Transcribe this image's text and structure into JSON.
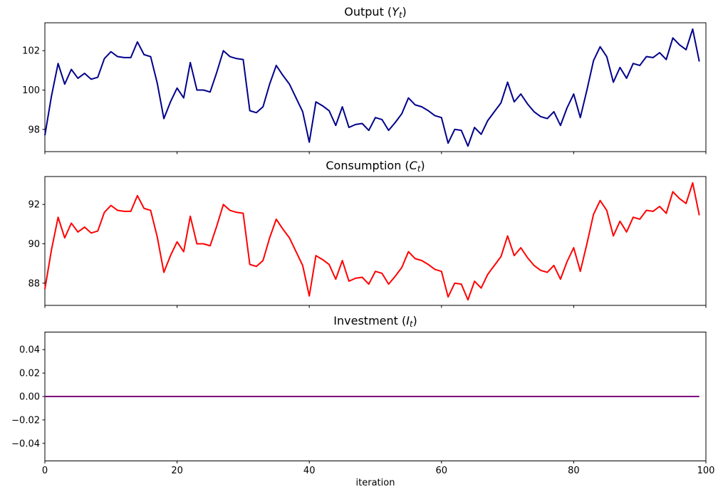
{
  "figure": {
    "background": "#ffffff",
    "text_color": "#000000",
    "axis_color": "#000000"
  },
  "chart_data": [
    {
      "id": "output",
      "type": "line",
      "title": {
        "prefix": "Output (",
        "var": "Y",
        "sub": "t",
        "suffix": ")"
      },
      "line_color": "#00008B",
      "x_start": 0,
      "x_step": 1,
      "xlim": [
        0,
        100
      ],
      "xticks": [
        0,
        20,
        40,
        60,
        80,
        100
      ],
      "xtick_labels": [
        "0",
        "20",
        "40",
        "60",
        "80",
        "100"
      ],
      "show_xtick_labels": false,
      "ylim": [
        96.87,
        103.42
      ],
      "yticks": [
        98,
        100,
        102
      ],
      "ytick_labels": [
        "98",
        "100",
        "102"
      ],
      "values": [
        97.7,
        99.7,
        101.35,
        100.3,
        101.05,
        100.6,
        100.85,
        100.55,
        100.65,
        101.6,
        101.95,
        101.7,
        101.65,
        101.65,
        102.45,
        101.8,
        101.7,
        100.35,
        98.55,
        99.4,
        100.1,
        99.6,
        101.4,
        100.0,
        100.0,
        99.9,
        100.9,
        102.0,
        101.7,
        101.6,
        101.55,
        98.95,
        98.85,
        99.15,
        100.3,
        101.25,
        100.75,
        100.3,
        99.6,
        98.9,
        97.35,
        99.4,
        99.2,
        98.95,
        98.2,
        99.15,
        98.1,
        98.25,
        98.3,
        97.95,
        98.6,
        98.5,
        97.95,
        98.35,
        98.8,
        99.6,
        99.25,
        99.15,
        98.95,
        98.7,
        98.6,
        97.3,
        98.0,
        97.95,
        97.15,
        98.1,
        97.75,
        98.45,
        98.9,
        99.35,
        100.4,
        99.4,
        99.8,
        99.3,
        98.9,
        98.65,
        98.55,
        98.9,
        98.2,
        99.1,
        99.8,
        98.6,
        100.0,
        101.5,
        102.2,
        101.7,
        100.4,
        101.15,
        100.6,
        101.35,
        101.25,
        101.7,
        101.65,
        101.9,
        101.55,
        102.65,
        102.3,
        102.05,
        103.1,
        101.45
      ]
    },
    {
      "id": "consumption",
      "type": "line",
      "title": {
        "prefix": "Consumption (",
        "var": "C",
        "sub": "t",
        "suffix": ")"
      },
      "line_color": "#FF0000",
      "x_start": 0,
      "x_step": 1,
      "xlim": [
        0,
        100
      ],
      "xticks": [
        0,
        20,
        40,
        60,
        80,
        100
      ],
      "xtick_labels": [
        "0",
        "20",
        "40",
        "60",
        "80",
        "100"
      ],
      "show_xtick_labels": false,
      "ylim": [
        86.87,
        93.42
      ],
      "yticks": [
        88,
        90,
        92
      ],
      "ytick_labels": [
        "88",
        "90",
        "92"
      ],
      "values": [
        87.7,
        89.7,
        91.35,
        90.3,
        91.05,
        90.6,
        90.85,
        90.55,
        90.65,
        91.6,
        91.95,
        91.7,
        91.65,
        91.65,
        92.45,
        91.8,
        91.7,
        90.35,
        88.55,
        89.4,
        90.1,
        89.6,
        91.4,
        90.0,
        90.0,
        89.9,
        90.9,
        92.0,
        91.7,
        91.6,
        91.55,
        88.95,
        88.85,
        89.15,
        90.3,
        91.25,
        90.75,
        90.3,
        89.6,
        88.9,
        87.35,
        89.4,
        89.2,
        88.95,
        88.2,
        89.15,
        88.1,
        88.25,
        88.3,
        87.95,
        88.6,
        88.5,
        87.95,
        88.35,
        88.8,
        89.6,
        89.25,
        89.15,
        88.95,
        88.7,
        88.6,
        87.3,
        88.0,
        87.95,
        87.15,
        88.1,
        87.75,
        88.45,
        88.9,
        89.35,
        90.4,
        89.4,
        89.8,
        89.3,
        88.9,
        88.65,
        88.55,
        88.9,
        88.2,
        89.1,
        89.8,
        88.6,
        90.0,
        91.5,
        92.2,
        91.7,
        90.4,
        91.15,
        90.6,
        91.35,
        91.25,
        91.7,
        91.65,
        91.9,
        91.55,
        92.65,
        92.3,
        92.05,
        93.1,
        91.45
      ]
    },
    {
      "id": "investment",
      "type": "line",
      "title": {
        "prefix": "Investment (",
        "var": "I",
        "sub": "t",
        "suffix": ")"
      },
      "line_color": "#800080",
      "x_start": 0,
      "x_step": 1,
      "xlim": [
        0,
        100
      ],
      "xticks": [
        0,
        20,
        40,
        60,
        80,
        100
      ],
      "xtick_labels": [
        "0",
        "20",
        "40",
        "60",
        "80",
        "100"
      ],
      "show_xtick_labels": true,
      "xlabel": "iteration",
      "ylim": [
        -0.055,
        0.055
      ],
      "yticks": [
        -0.04,
        -0.02,
        0,
        0.02,
        0.04
      ],
      "ytick_labels": [
        "−0.04",
        "−0.02",
        "0.00",
        "0.02",
        "0.04"
      ],
      "values": [
        0,
        0,
        0,
        0,
        0,
        0,
        0,
        0,
        0,
        0,
        0,
        0,
        0,
        0,
        0,
        0,
        0,
        0,
        0,
        0,
        0,
        0,
        0,
        0,
        0,
        0,
        0,
        0,
        0,
        0,
        0,
        0,
        0,
        0,
        0,
        0,
        0,
        0,
        0,
        0,
        0,
        0,
        0,
        0,
        0,
        0,
        0,
        0,
        0,
        0,
        0,
        0,
        0,
        0,
        0,
        0,
        0,
        0,
        0,
        0,
        0,
        0,
        0,
        0,
        0,
        0,
        0,
        0,
        0,
        0,
        0,
        0,
        0,
        0,
        0,
        0,
        0,
        0,
        0,
        0,
        0,
        0,
        0,
        0,
        0,
        0,
        0,
        0,
        0,
        0,
        0,
        0,
        0,
        0,
        0,
        0,
        0,
        0,
        0,
        0
      ]
    }
  ]
}
